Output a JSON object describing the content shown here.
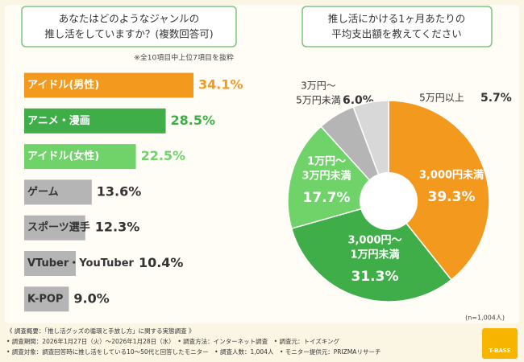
{
  "chart_data": [
    {
      "type": "hbar",
      "title": [
        "あなたはどのようなジャンルの",
        "推し活をしていますか？(複数回答可)"
      ],
      "subtitle": "※全10項目中上位7項目を抜粋",
      "categories": [
        "アイドル(男性)",
        "アニメ・漫画",
        "アイドル(女性)",
        "ゲーム",
        "スポーツ選手",
        "VTuber・YouTuber",
        "K-POP"
      ],
      "values": [
        34.1,
        28.5,
        22.5,
        13.6,
        12.3,
        10.4,
        9.0
      ],
      "value_labels": [
        "34.1%",
        "28.5%",
        "22.5%",
        "13.6%",
        "12.3%",
        "10.4%",
        "9.0%"
      ],
      "colors": [
        "#f39a1e",
        "#3fae49",
        "#6fd36a",
        "#b5b5b5",
        "#b5b5b5",
        "#b5b5b5",
        "#b5b5b5"
      ]
    },
    {
      "type": "donut",
      "title": [
        "推し活にかける1ヶ月あたりの",
        "平均支出額を教えてください"
      ],
      "categories": [
        [
          "3,000円未満"
        ],
        [
          "3,000円～",
          "1万円未満"
        ],
        [
          "1万円～",
          "3万円未満"
        ],
        [
          "3万円～",
          "5万円未満"
        ],
        [
          "5万円以上"
        ]
      ],
      "values": [
        39.3,
        31.3,
        17.7,
        6.0,
        5.7
      ],
      "value_labels": [
        "39.3%",
        "31.3%",
        "17.7%",
        "6.0%",
        "5.7%"
      ],
      "colors": [
        "#f39a1e",
        "#3fae49",
        "#6fd36a",
        "#b5b5b5",
        "#d8d8d8"
      ],
      "note": "(n=1,004人)"
    }
  ],
  "footer": {
    "lines": [
      "《 調査概要：「推し活グッズの循環と手放し方」に関する実態調査 》",
      "• 調査期間：2026年1月27日（火）～2026年1月28日（水）　• 調査方法：インターネット調査　• 調査元：トイズキング",
      "• 調査対象：調査回答時に推し活をしている10～50代と回答したモニター　• 調査人数：1,004人　• モニター提供元：PRIZMAリサーチ"
    ],
    "logo": "T-BASE"
  }
}
